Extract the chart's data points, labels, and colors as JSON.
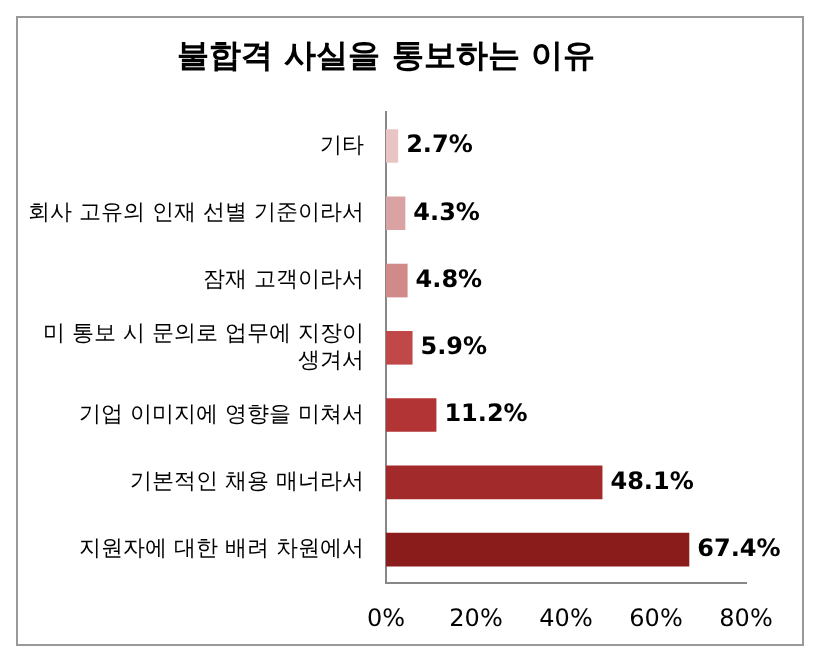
{
  "chart_data": {
    "type": "bar",
    "orientation": "horizontal",
    "title": "불합격 사실을 통보하는 이유",
    "categories": [
      "기타",
      "회사 고유의 인재 선별 기준이라서",
      "잠재 고객이라서",
      "미 통보 시 문의로 업무에 지장이 생겨서",
      "기업 이미지에 영향을 미쳐서",
      "기본적인 채용 매너라서",
      "지원자에 대한 배려 차원에서"
    ],
    "values": [
      2.7,
      4.3,
      4.8,
      5.9,
      11.2,
      48.1,
      67.4
    ],
    "colors": [
      "#e8c4c4",
      "#d9a3a3",
      "#d08a8a",
      "#c04848",
      "#b23434",
      "#a22a2a",
      "#8a1c1c"
    ],
    "value_labels": [
      "2.7%",
      "4.3%",
      "4.8%",
      "5.9%",
      "11.2%",
      "48.1%",
      "67.4%"
    ],
    "xlim": [
      0,
      80
    ],
    "xticks": [
      {
        "value": 0,
        "label": "0%"
      },
      {
        "value": 20,
        "label": "20%"
      },
      {
        "value": 40,
        "label": "40%"
      },
      {
        "value": 60,
        "label": "60%"
      },
      {
        "value": 80,
        "label": "80%"
      }
    ],
    "grid": false,
    "legend": false
  }
}
